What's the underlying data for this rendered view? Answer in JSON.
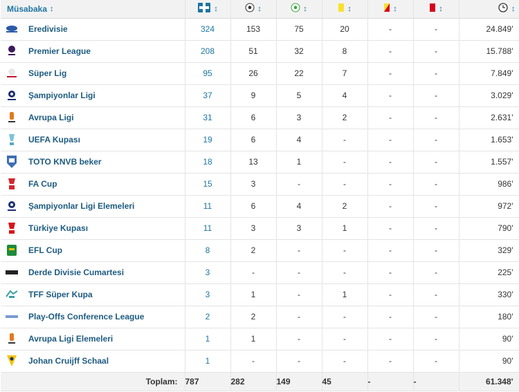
{
  "header": {
    "competition": "Müsabaka",
    "sort_glyph": "↕",
    "icons": [
      "appearances-shirt-icon",
      "goal-ball-icon",
      "assist-ball-icon",
      "yellow-card-icon",
      "second-yellow-card-icon",
      "red-card-icon",
      "clock-icon"
    ]
  },
  "rows": [
    {
      "name": "Eredivisie",
      "apps": "324",
      "goals": "153",
      "assists": "75",
      "yellow": "20",
      "second_yellow": "-",
      "red": "-",
      "minutes": "24.849'",
      "logo": "eredivisie-logo"
    },
    {
      "name": "Premier League",
      "apps": "208",
      "goals": "51",
      "assists": "32",
      "yellow": "8",
      "second_yellow": "-",
      "red": "-",
      "minutes": "15.788'",
      "logo": "premier-league-logo"
    },
    {
      "name": "Süper Lig",
      "apps": "95",
      "goals": "26",
      "assists": "22",
      "yellow": "7",
      "second_yellow": "-",
      "red": "-",
      "minutes": "7.849'",
      "logo": "super-lig-logo"
    },
    {
      "name": "Şampiyonlar Ligi",
      "apps": "37",
      "goals": "9",
      "assists": "5",
      "yellow": "4",
      "second_yellow": "-",
      "red": "-",
      "minutes": "3.029'",
      "logo": "champions-league-logo"
    },
    {
      "name": "Avrupa Ligi",
      "apps": "31",
      "goals": "6",
      "assists": "3",
      "yellow": "2",
      "second_yellow": "-",
      "red": "-",
      "minutes": "2.631'",
      "logo": "europa-league-logo"
    },
    {
      "name": "UEFA Kupası",
      "apps": "19",
      "goals": "6",
      "assists": "4",
      "yellow": "-",
      "second_yellow": "-",
      "red": "-",
      "minutes": "1.653'",
      "logo": "uefa-cup-logo"
    },
    {
      "name": "TOTO KNVB beker",
      "apps": "18",
      "goals": "13",
      "assists": "1",
      "yellow": "-",
      "second_yellow": "-",
      "red": "-",
      "minutes": "1.557'",
      "logo": "knvb-beker-logo"
    },
    {
      "name": "FA Cup",
      "apps": "15",
      "goals": "3",
      "assists": "-",
      "yellow": "-",
      "second_yellow": "-",
      "red": "-",
      "minutes": "986'",
      "logo": "fa-cup-logo"
    },
    {
      "name": "Şampiyonlar Ligi Elemeleri",
      "apps": "11",
      "goals": "6",
      "assists": "4",
      "yellow": "2",
      "second_yellow": "-",
      "red": "-",
      "minutes": "972'",
      "logo": "champions-league-qual-logo"
    },
    {
      "name": "Türkiye Kupası",
      "apps": "11",
      "goals": "3",
      "assists": "3",
      "yellow": "1",
      "second_yellow": "-",
      "red": "-",
      "minutes": "790'",
      "logo": "turkiye-kupasi-logo"
    },
    {
      "name": "EFL Cup",
      "apps": "8",
      "goals": "2",
      "assists": "-",
      "yellow": "-",
      "second_yellow": "-",
      "red": "-",
      "minutes": "329'",
      "logo": "efl-cup-logo"
    },
    {
      "name": "Derde Divisie Cumartesi",
      "apps": "3",
      "goals": "-",
      "assists": "-",
      "yellow": "-",
      "second_yellow": "-",
      "red": "-",
      "minutes": "225'",
      "logo": "derde-divisie-logo"
    },
    {
      "name": "TFF Süper Kupa",
      "apps": "3",
      "goals": "1",
      "assists": "-",
      "yellow": "1",
      "second_yellow": "-",
      "red": "-",
      "minutes": "330'",
      "logo": "tff-super-kupa-logo"
    },
    {
      "name": "Play-Offs Conference League",
      "apps": "2",
      "goals": "2",
      "assists": "-",
      "yellow": "-",
      "second_yellow": "-",
      "red": "-",
      "minutes": "180'",
      "logo": "conference-league-logo"
    },
    {
      "name": "Avrupa Ligi Elemeleri",
      "apps": "1",
      "goals": "1",
      "assists": "-",
      "yellow": "-",
      "second_yellow": "-",
      "red": "-",
      "minutes": "90'",
      "logo": "europa-league-qual-logo"
    },
    {
      "name": "Johan Cruijff Schaal",
      "apps": "1",
      "goals": "-",
      "assists": "-",
      "yellow": "-",
      "second_yellow": "-",
      "red": "-",
      "minutes": "90'",
      "logo": "johan-cruijff-schaal-logo"
    }
  ],
  "totals": {
    "label": "Toplam:",
    "apps": "787",
    "goals": "282",
    "assists": "149",
    "yellow": "45",
    "second_yellow": "-",
    "red": "-",
    "minutes": "61.348'"
  },
  "colors": {
    "link": "#1d75a3",
    "yellow_card": "#f7e12f",
    "red_card": "#d6001c"
  }
}
